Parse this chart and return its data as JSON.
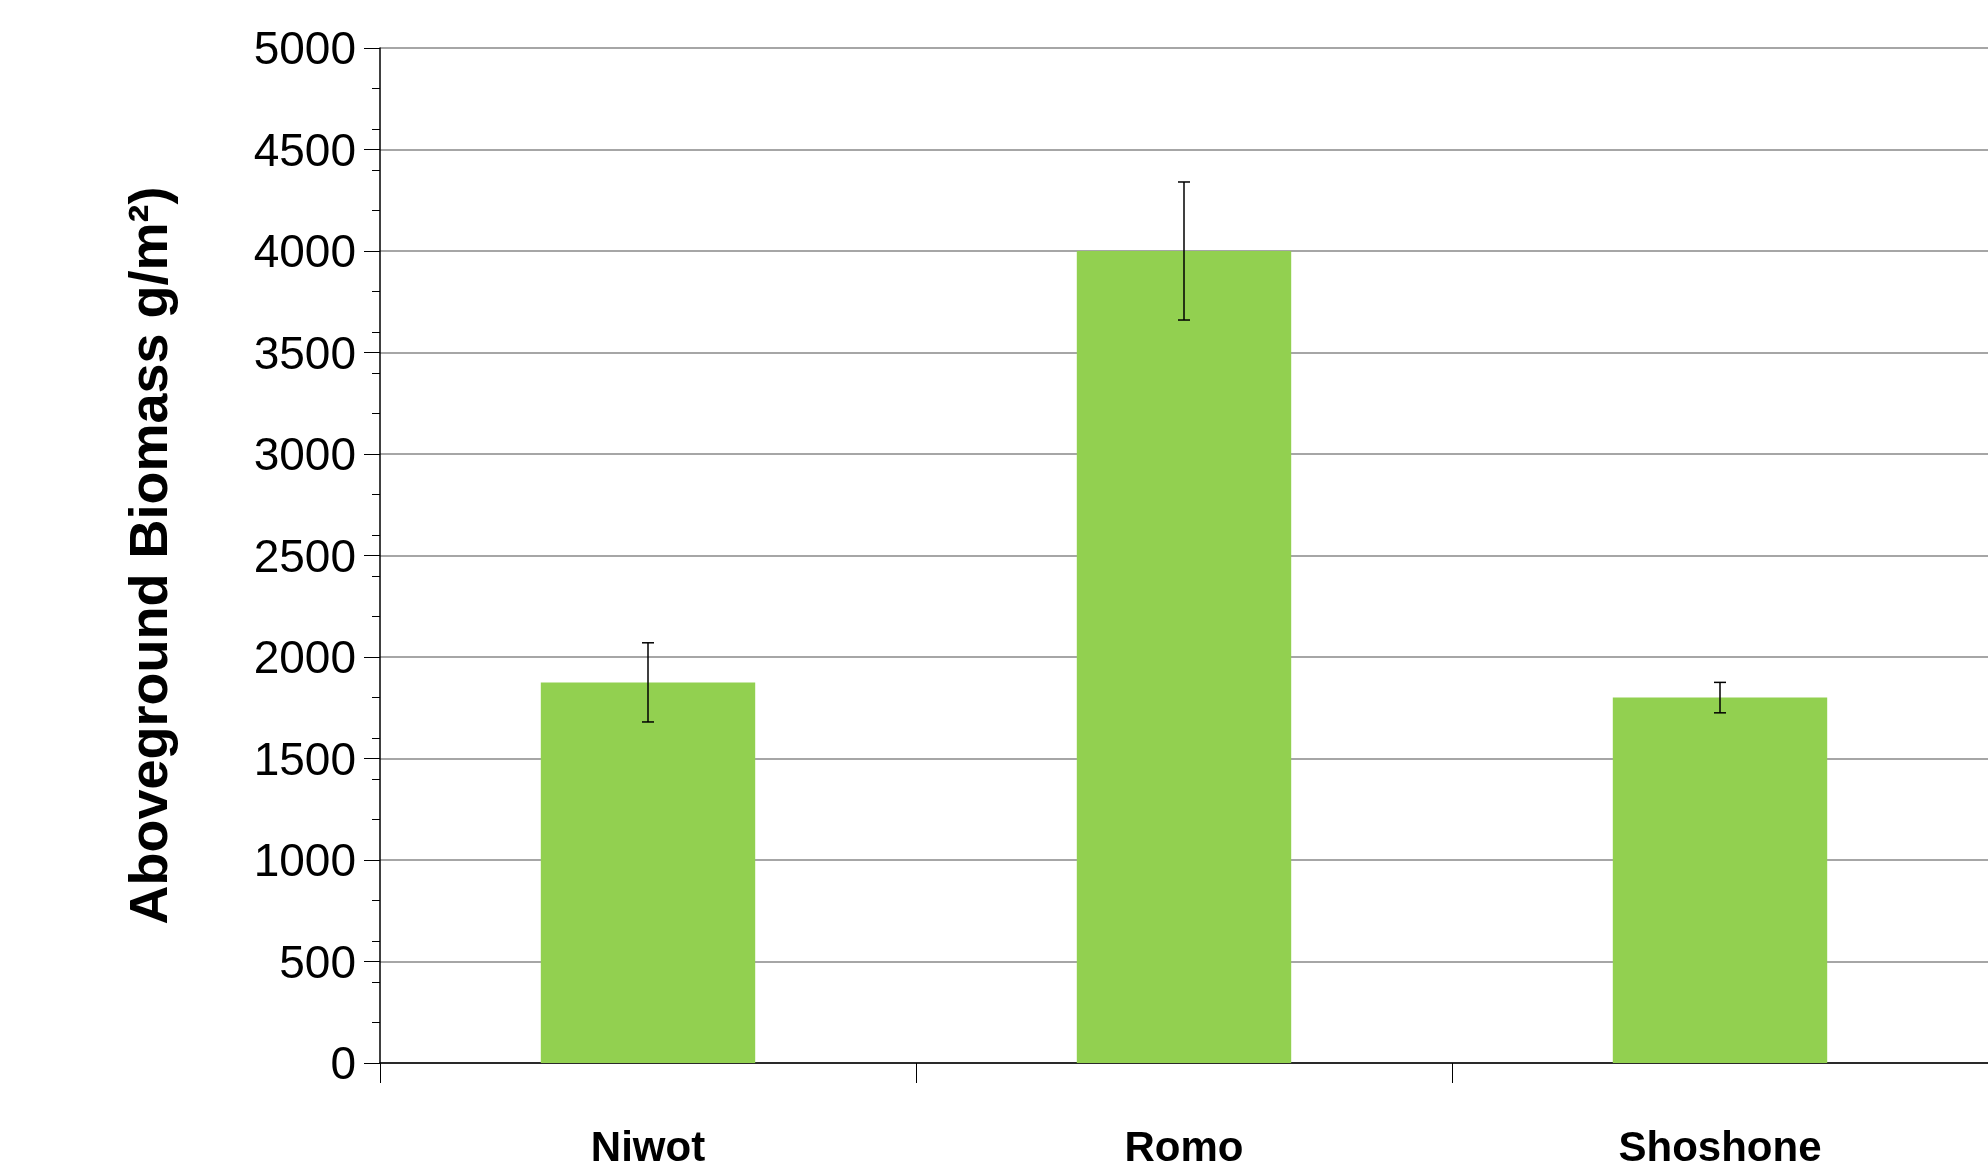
{
  "chart_data": {
    "type": "bar",
    "ylabel": "Aboveground Biomass g/m²)",
    "categories": [
      "Niwot",
      "Romo",
      "Shoshone"
    ],
    "values": [
      1875,
      4000,
      1800
    ],
    "errors": [
      195,
      340,
      75
    ],
    "color": "#92d050",
    "ylim": [
      0,
      5000
    ],
    "yticks": [
      0,
      500,
      1000,
      1500,
      2000,
      2500,
      3000,
      3500,
      4000,
      4500,
      5000
    ],
    "grid": "y"
  }
}
